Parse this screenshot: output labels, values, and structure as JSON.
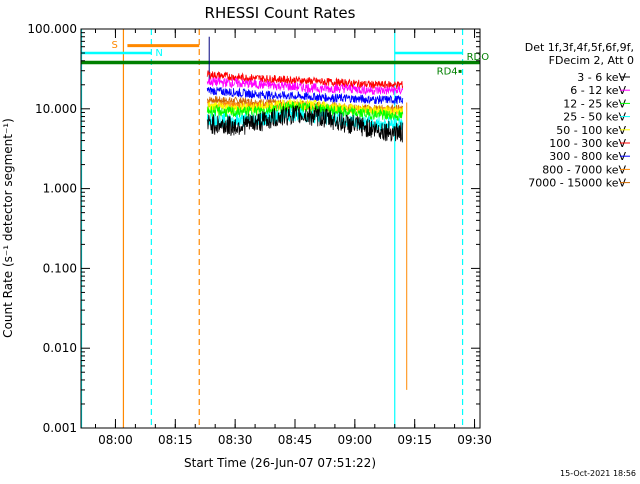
{
  "chart_data": {
    "type": "line",
    "title": "RHESSI Count Rates",
    "xlabel": "Start Time (26-Jun-07 07:51:22)",
    "ylabel": "Count Rate (s⁻¹ detector segment⁻¹)",
    "yscale": "log",
    "ylim": [
      0.001,
      100
    ],
    "xlim": [
      "07:51:22",
      "09:31:22"
    ],
    "x_ticks": [
      "08:00",
      "08:15",
      "08:30",
      "08:45",
      "09:00",
      "09:15",
      "09:30"
    ],
    "y_ticks": [
      "0.001",
      "0.010",
      "0.100",
      "1.000",
      "10.000",
      "100.000"
    ],
    "grid": false,
    "legend_position": "right",
    "legend_header": [
      "Det 1f,3f,4f,5f,6f,9f,",
      "FDecim 2, Att 0"
    ],
    "series": [
      {
        "name": "3 - 6 keV",
        "color": "#000000",
        "x": [
          "08:23",
          "08:30",
          "08:37",
          "08:44",
          "08:51",
          "08:58",
          "09:05",
          "09:12"
        ],
        "y": [
          6.5,
          6.0,
          7.0,
          8.5,
          8.0,
          6.5,
          5.5,
          5.0
        ]
      },
      {
        "name": "6 - 12 keV",
        "color": "#ff00ff",
        "x": [
          "08:23",
          "08:30",
          "08:37",
          "08:44",
          "08:51",
          "08:58",
          "09:05",
          "09:12"
        ],
        "y": [
          22,
          21,
          20,
          19,
          18,
          18,
          17,
          17
        ]
      },
      {
        "name": "12 - 25 keV",
        "color": "#00ff00",
        "x": [
          "08:23",
          "08:30",
          "08:37",
          "08:44",
          "08:51",
          "08:58",
          "09:05",
          "09:12"
        ],
        "y": [
          9.5,
          9.0,
          9.5,
          10.5,
          10.0,
          9.0,
          8.5,
          8.0
        ]
      },
      {
        "name": "25 - 50 keV",
        "color": "#00ffff",
        "x": [
          "08:23",
          "08:30",
          "08:37",
          "08:44",
          "08:51",
          "08:58",
          "09:05",
          "09:12"
        ],
        "y": [
          7.5,
          7.0,
          7.5,
          8.5,
          8.0,
          7.0,
          6.5,
          6.5
        ]
      },
      {
        "name": "50 - 100 keV",
        "color": "#ffff00",
        "x": [
          "08:23",
          "08:30",
          "08:37",
          "08:44",
          "08:51",
          "08:58",
          "09:05",
          "09:12"
        ],
        "y": [
          10.5,
          10.0,
          10.5,
          11.5,
          11.0,
          10.0,
          9.5,
          9.0
        ]
      },
      {
        "name": "100 - 300 keV",
        "color": "#ff0000",
        "x": [
          "08:23",
          "08:30",
          "08:37",
          "08:44",
          "08:51",
          "08:58",
          "09:05",
          "09:12"
        ],
        "y": [
          27,
          25,
          24,
          23,
          22,
          21,
          20,
          20
        ]
      },
      {
        "name": "300 - 800 keV",
        "color": "#0000ff",
        "x": [
          "08:23",
          "08:30",
          "08:37",
          "08:44",
          "08:51",
          "08:58",
          "09:05",
          "09:12"
        ],
        "y": [
          17,
          16,
          15,
          14.5,
          14,
          13.5,
          13,
          13
        ]
      },
      {
        "name": "800 - 7000 keV",
        "color": "#ff8800",
        "x": [
          "08:23",
          "08:30",
          "08:37",
          "08:44",
          "08:51",
          "08:58",
          "09:05",
          "09:12"
        ],
        "y": [
          11.5,
          11.0,
          11.0,
          11.0,
          10.5,
          10.0,
          9.5,
          9.5
        ]
      },
      {
        "name": "7000 - 15000 keV",
        "color": "#cc6600",
        "x": [
          "08:23",
          "08:30",
          "08:37",
          "08:44",
          "08:51",
          "08:58",
          "09:05",
          "09:12"
        ],
        "y": [
          13,
          12.5,
          12,
          11.5,
          11,
          10.5,
          10,
          10
        ]
      }
    ],
    "annotations": {
      "S": {
        "label": "S",
        "color": "#ff8800"
      },
      "N": {
        "label": "N",
        "color": "#00ffff"
      },
      "RD4": {
        "label": "RD4",
        "color": "#008000"
      },
      "RDO": {
        "label": "RDO",
        "color": "#008000"
      }
    },
    "footer_date": "15-Oct-2021 18:56",
    "colors": {
      "orange_lines": "#ff8800",
      "cyan_lines": "#00ffff",
      "green_line": "#008000",
      "navy_line": "#000080"
    }
  }
}
